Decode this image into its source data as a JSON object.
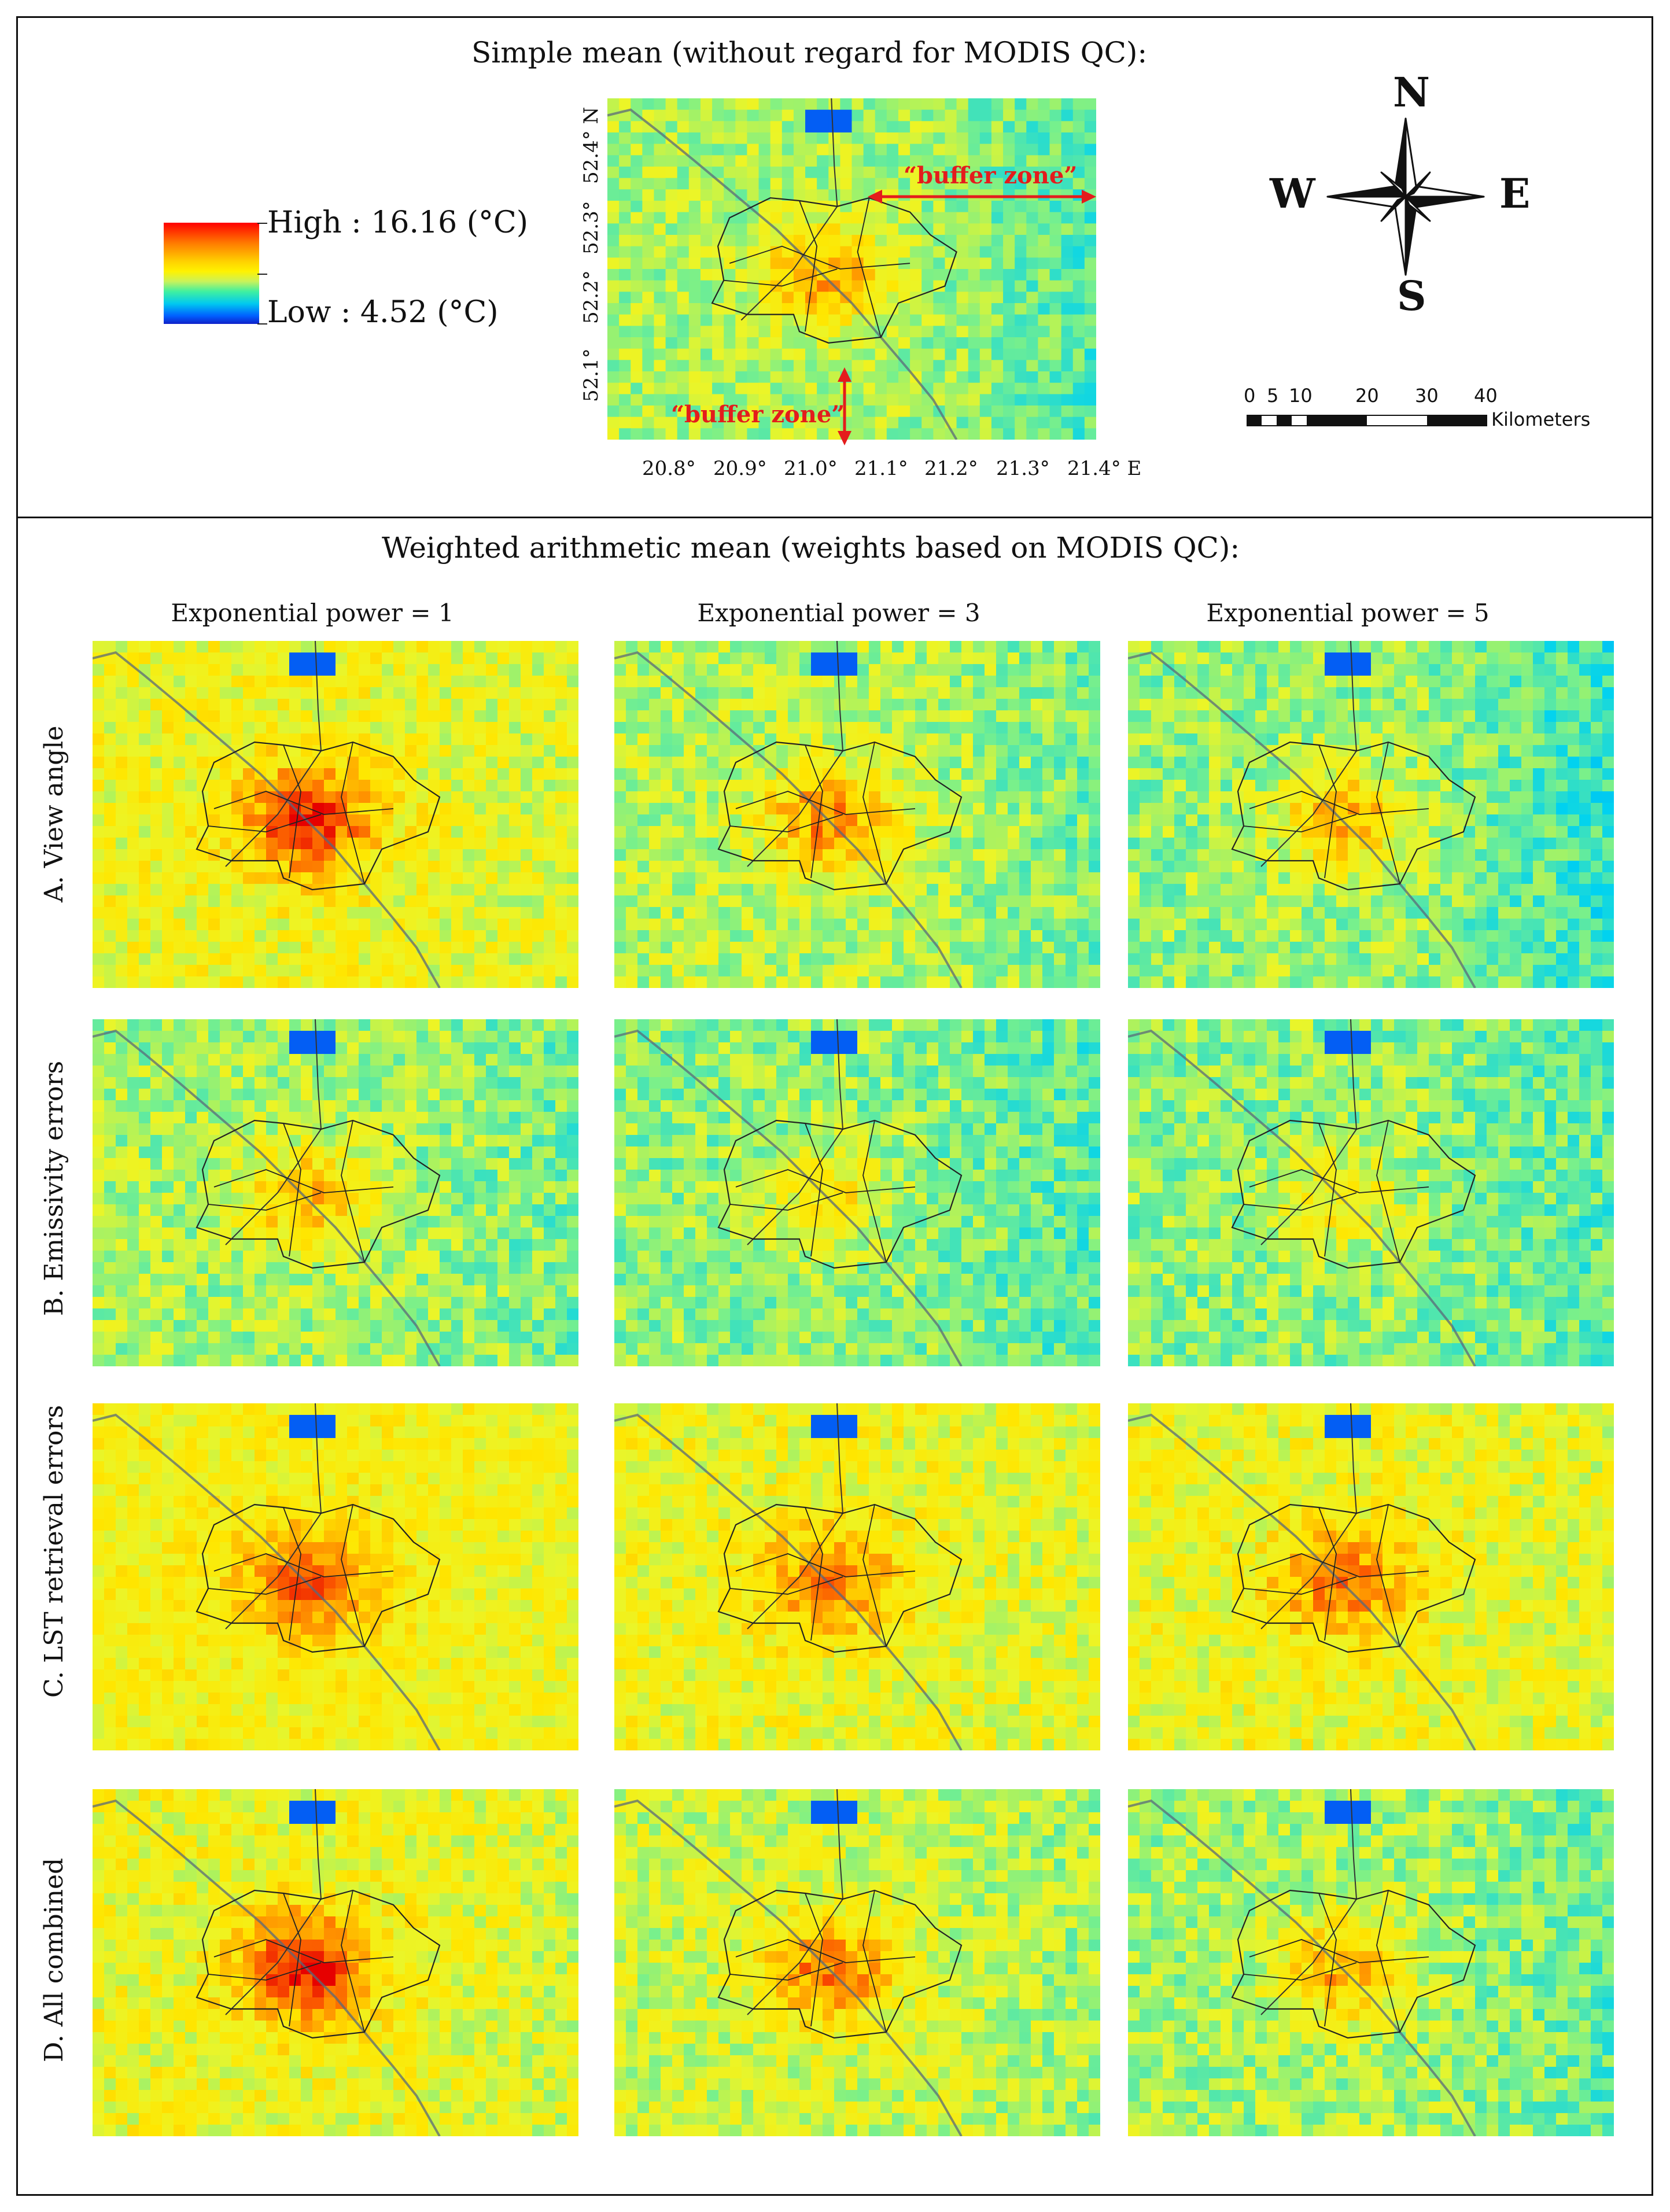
{
  "top_panel": {
    "title": "Simple mean (without regard for MODIS QC):",
    "legend": {
      "high": "High : 16.16 (°C)",
      "low": "Low : 4.52 (°C)",
      "high_value": 16.16,
      "low_value": 4.52
    },
    "lat_ticks": [
      "52.4° N",
      "52.3°",
      "52.2°",
      "52.1°"
    ],
    "lon_ticks": [
      "20.8°",
      "20.9°",
      "21.0°",
      "21.1°",
      "21.2°",
      "21.3°",
      "21.4° E"
    ],
    "annotations": {
      "buffer_east": "“buffer zone”",
      "buffer_south": "“buffer zone”"
    },
    "compass": {
      "n": "N",
      "s": "S",
      "e": "E",
      "w": "W"
    },
    "scale": {
      "ticks": [
        "0",
        "5",
        "10",
        "20",
        "30",
        "40"
      ],
      "unit": "Kilometers"
    }
  },
  "bottom_panel": {
    "title": "Weighted arithmetic mean (weights based on MODIS QC):",
    "columns": [
      "Exponential power = 1",
      "Exponential power = 3",
      "Exponential power = 5"
    ],
    "rows": [
      "A. View angle",
      "B. Emissivity errors",
      "C. LST retrieval errors",
      "D. All combined"
    ]
  },
  "colors": {
    "high": "#ff0000",
    "mid": "#fff200",
    "low": "#1020c8",
    "annotation": "#e41c1c"
  }
}
